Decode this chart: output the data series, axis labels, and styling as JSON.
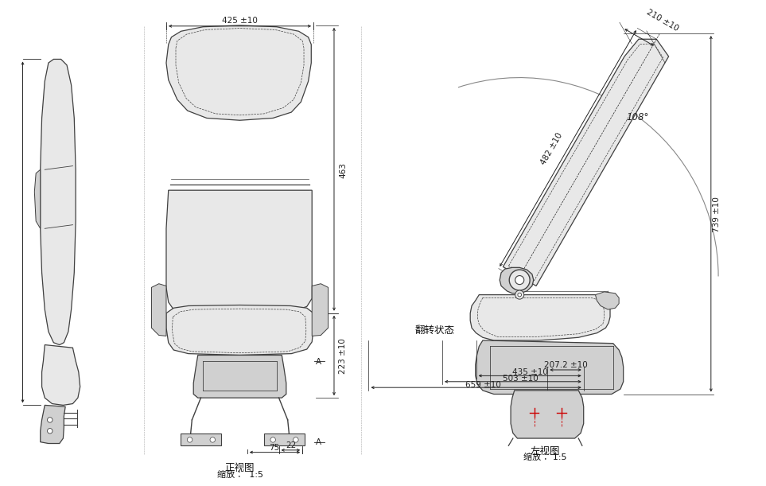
{
  "bg_color": "#ffffff",
  "line_color": "#404040",
  "dim_color": "#222222",
  "red_color": "#cc0000",
  "fill_light": "#e8e8e8",
  "fill_mid": "#d0d0d0",
  "fill_dark": "#b8b8b8",
  "dim_425": "425 ±10",
  "dim_463": "463",
  "dim_223": "223 ±10",
  "dim_22": "22",
  "dim_75": "75",
  "dim_739": "739 ±10",
  "dim_482": "482 ±10",
  "dim_210": "210 ±10",
  "dim_108": "108°",
  "dim_207": "207.2 ±10",
  "dim_435": "435 ±10",
  "dim_503": "503 ±10",
  "dim_659": "659 ±10",
  "label_front_zh": "正视图",
  "label_front_scale": "缩放：  1:5",
  "label_side_zh": "左视图",
  "label_side_scale": "缩放： 1:5",
  "label_flip": "翻转状态",
  "fs_dim": 7.5,
  "fs_label": 9,
  "fs_scale": 8
}
